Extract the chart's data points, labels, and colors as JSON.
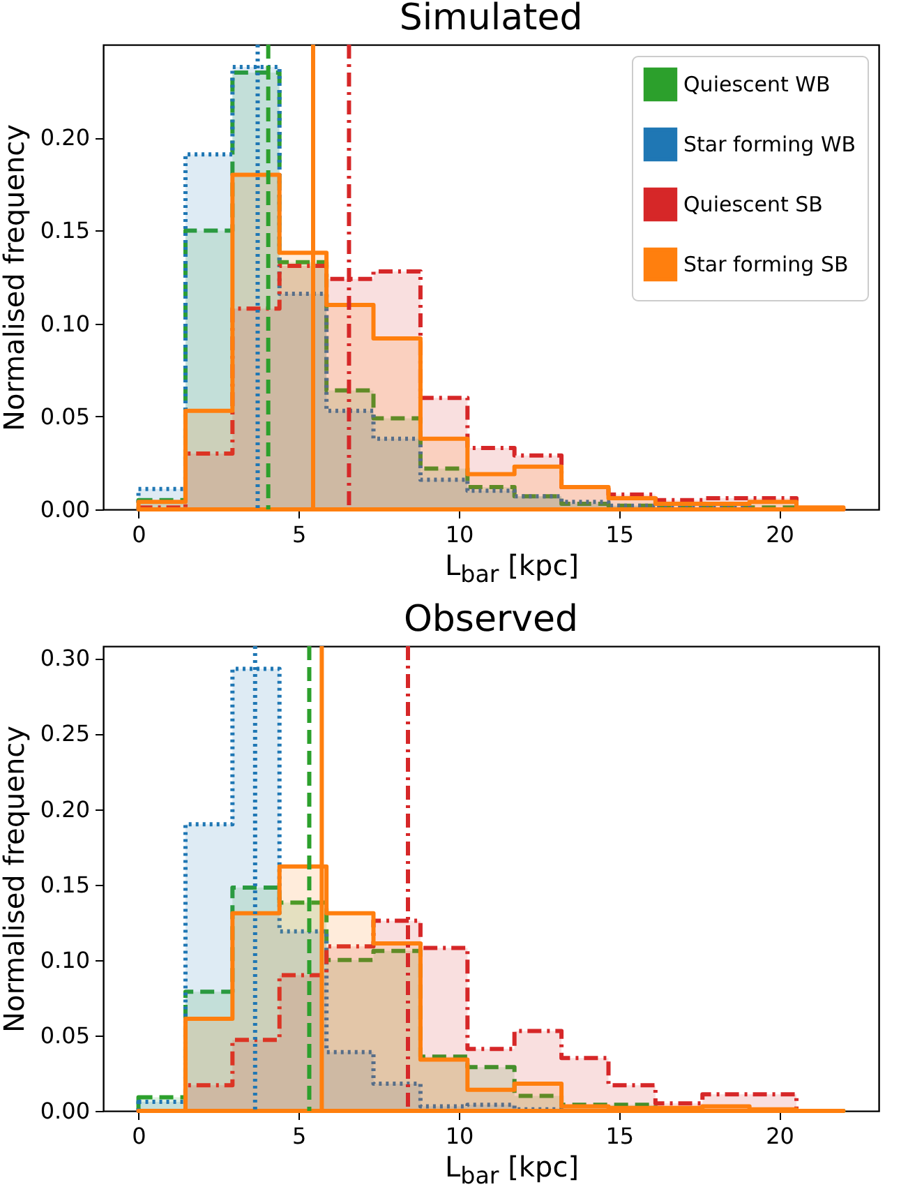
{
  "chart_data": [
    {
      "type": "histogram",
      "title": "Simulated",
      "xlabel": "L$_{bar}$ [kpc]",
      "ylabel": "Normalised frequency",
      "bins": [
        0,
        1.467,
        2.933,
        4.4,
        5.867,
        7.333,
        8.8,
        10.267,
        11.733,
        13.2,
        14.667,
        16.133,
        17.6,
        19.067,
        20.533,
        22
      ],
      "series": [
        {
          "name": "Quiescent WB",
          "color": "#2ca02c",
          "line_style": "dashed",
          "values": [
            0.005,
            0.15,
            0.235,
            0.133,
            0.064,
            0.049,
            0.022,
            0.012,
            0.007,
            0.003,
            0.002,
            0.001,
            0.001,
            0.001,
            0
          ]
        },
        {
          "name": "Star forming WB",
          "color": "#1f77b4",
          "line_style": "dotted",
          "values": [
            0.011,
            0.191,
            0.238,
            0.116,
            0.053,
            0.038,
            0.016,
            0.01,
            0.007,
            0.004,
            0.002,
            0.001,
            0.001,
            0,
            0
          ]
        },
        {
          "name": "Quiescent SB",
          "color": "#d62728",
          "line_style": "dashdot",
          "values": [
            0.001,
            0.03,
            0.108,
            0.131,
            0.124,
            0.128,
            0.06,
            0.033,
            0.029,
            0.012,
            0.008,
            0.005,
            0.006,
            0.006,
            0
          ]
        },
        {
          "name": "Star forming SB",
          "color": "#ff7f0e",
          "line_style": "solid",
          "values": [
            0.004,
            0.053,
            0.18,
            0.138,
            0.11,
            0.092,
            0.038,
            0.019,
            0.023,
            0.012,
            0.006,
            0.003,
            0.003,
            0.004,
            0.001
          ]
        }
      ],
      "ref_lines": [
        {
          "axis": "x",
          "value": 4.05,
          "color": "#2ca02c",
          "line_style": "dashed"
        },
        {
          "axis": "x",
          "value": 3.72,
          "color": "#1f77b4",
          "line_style": "dotted"
        },
        {
          "axis": "x",
          "value": 6.57,
          "color": "#d62728",
          "line_style": "dashdot"
        },
        {
          "axis": "x",
          "value": 5.45,
          "color": "#ff7f0e",
          "line_style": "solid"
        }
      ],
      "xlim": [
        -1.1,
        23.1
      ],
      "xticks": [
        0,
        5,
        10,
        15,
        20
      ],
      "ylim": [
        0,
        0.25
      ],
      "yticks": [
        {
          "value": 0,
          "label": "0.00"
        },
        {
          "value": 0.05,
          "label": "0.05"
        },
        {
          "value": 0.1,
          "label": "0.10"
        },
        {
          "value": 0.15,
          "label": "0.15"
        },
        {
          "value": 0.2,
          "label": "0.20"
        }
      ],
      "legend": "top right",
      "grid": false
    },
    {
      "type": "histogram",
      "title": "Observed",
      "xlabel": "L$_{bar}$ [kpc]",
      "ylabel": "Normalised frequency",
      "bins": [
        0,
        1.467,
        2.933,
        4.4,
        5.867,
        7.333,
        8.8,
        10.267,
        11.733,
        13.2,
        14.667,
        16.133,
        17.6,
        19.067,
        20.533,
        22
      ],
      "series": [
        {
          "color": "#2ca02c",
          "line_style": "dashed",
          "values": [
            0.009,
            0.079,
            0.148,
            0.138,
            0.1,
            0.106,
            0.036,
            0.029,
            0.01,
            0.004,
            0.004,
            0.001,
            0,
            0,
            0
          ]
        },
        {
          "color": "#1f77b4",
          "line_style": "dotted",
          "values": [
            0.006,
            0.19,
            0.293,
            0.119,
            0.039,
            0.018,
            0.003,
            0.004,
            0.001,
            0,
            0,
            0,
            0,
            0,
            0
          ]
        },
        {
          "color": "#d62728",
          "line_style": "dashdot",
          "values": [
            0,
            0.017,
            0.047,
            0.09,
            0.109,
            0.126,
            0.108,
            0.041,
            0.053,
            0.035,
            0.017,
            0.005,
            0.011,
            0.011,
            0
          ]
        },
        {
          "color": "#ff7f0e",
          "line_style": "solid",
          "values": [
            0,
            0.061,
            0.131,
            0.162,
            0.131,
            0.111,
            0.034,
            0.014,
            0.018,
            0.003,
            0.002,
            0.002,
            0.003,
            0.001,
            0
          ]
        }
      ],
      "ref_lines": [
        {
          "axis": "x",
          "value": 5.33,
          "color": "#2ca02c",
          "line_style": "dashed"
        },
        {
          "axis": "x",
          "value": 3.64,
          "color": "#1f77b4",
          "line_style": "dotted"
        },
        {
          "axis": "x",
          "value": 8.41,
          "color": "#d62728",
          "line_style": "dashdot"
        },
        {
          "axis": "x",
          "value": 5.72,
          "color": "#ff7f0e",
          "line_style": "solid"
        }
      ],
      "xlim": [
        -1.1,
        23.1
      ],
      "xticks": [
        0,
        5,
        10,
        15,
        20
      ],
      "ylim": [
        0,
        0.308
      ],
      "yticks": [
        {
          "value": 0,
          "label": "0.00"
        },
        {
          "value": 0.05,
          "label": "0.05"
        },
        {
          "value": 0.1,
          "label": "0.10"
        },
        {
          "value": 0.15,
          "label": "0.15"
        },
        {
          "value": 0.2,
          "label": "0.20"
        },
        {
          "value": 0.25,
          "label": "0.25"
        },
        {
          "value": 0.3,
          "label": "0.30"
        }
      ],
      "grid": false
    }
  ]
}
